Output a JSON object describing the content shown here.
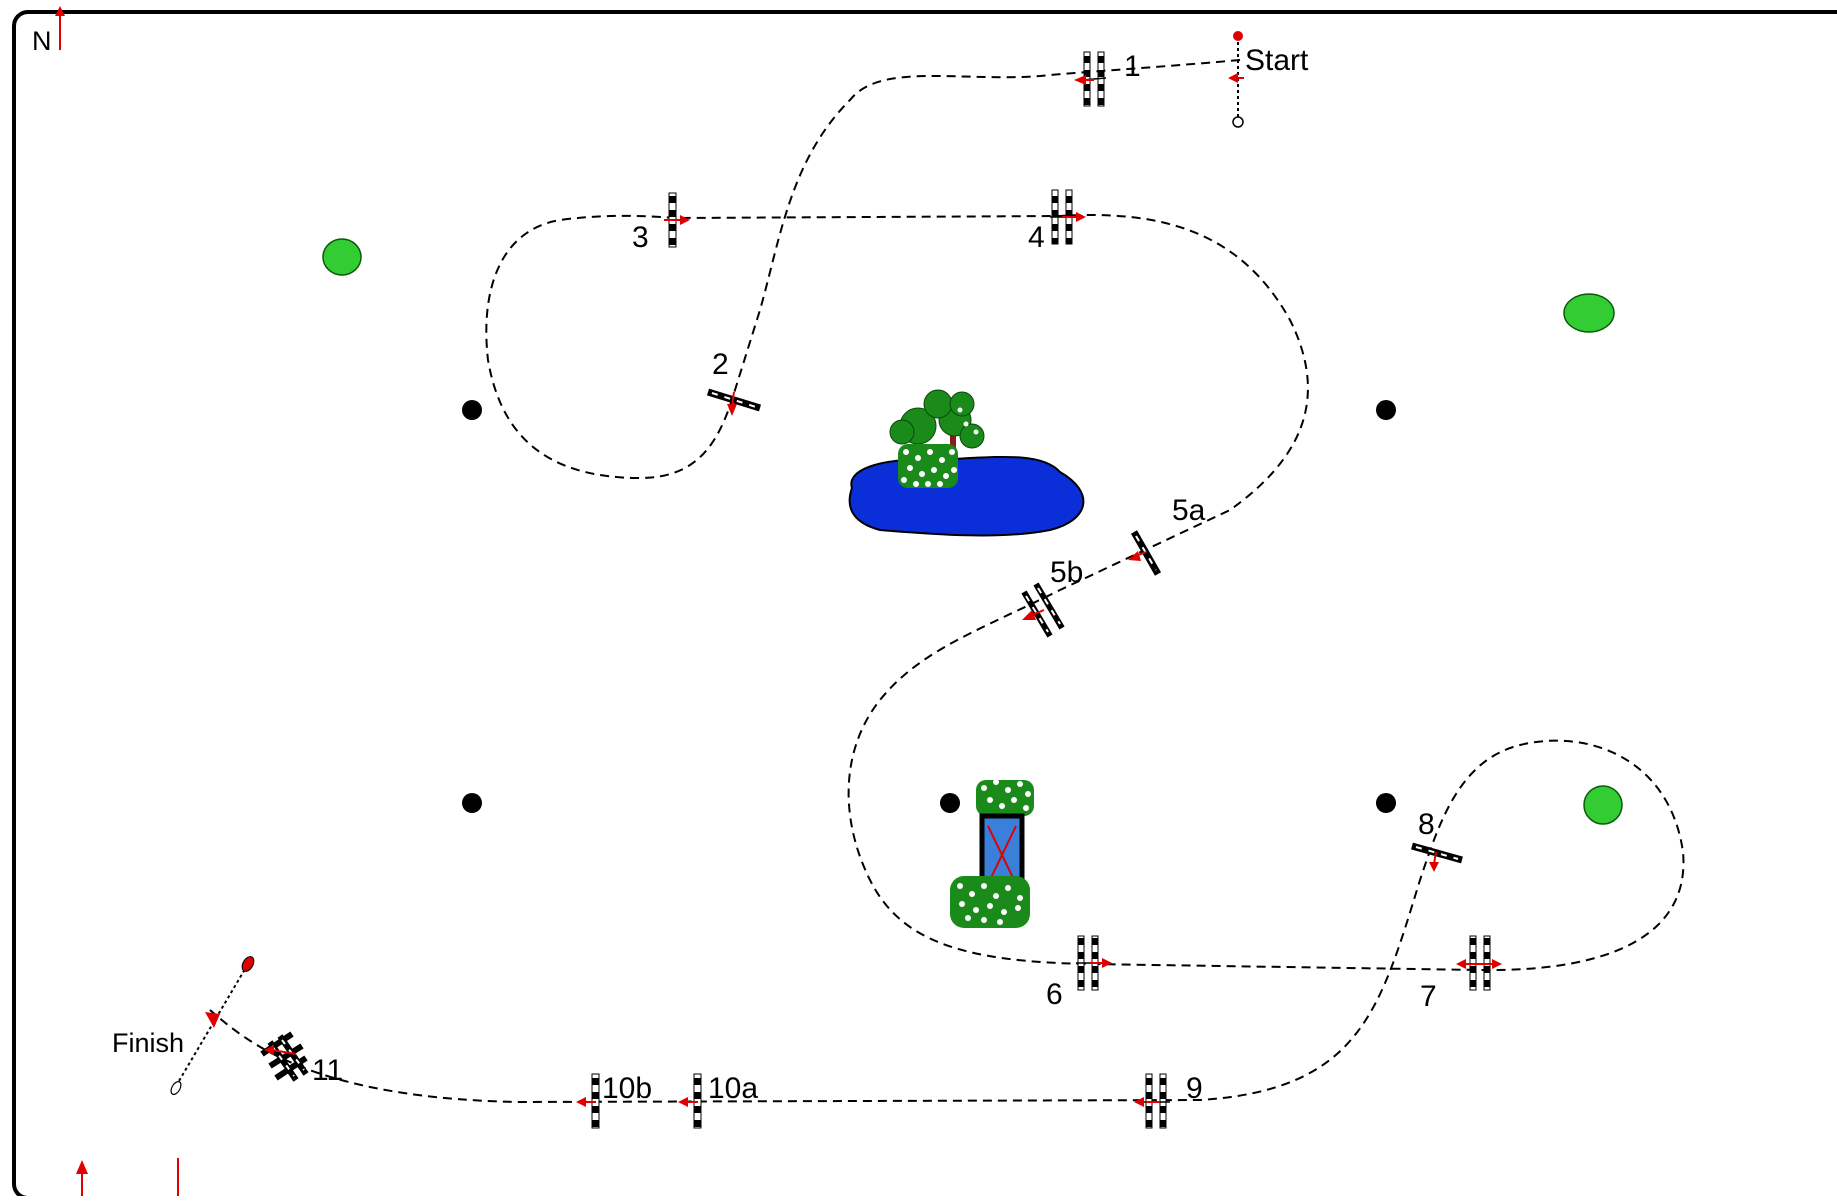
{
  "compass": {
    "north_label": "N"
  },
  "start": {
    "label": "Start"
  },
  "finish": {
    "label": "Finish"
  },
  "obstacles": [
    {
      "id": "1",
      "label": "1",
      "kind": "oxer"
    },
    {
      "id": "2",
      "label": "2",
      "kind": "vertical"
    },
    {
      "id": "3",
      "label": "3",
      "kind": "vertical"
    },
    {
      "id": "4",
      "label": "4",
      "kind": "oxer"
    },
    {
      "id": "5a",
      "label": "5a",
      "kind": "vertical"
    },
    {
      "id": "5b",
      "label": "5b",
      "kind": "oxer"
    },
    {
      "id": "6",
      "label": "6",
      "kind": "oxer"
    },
    {
      "id": "7",
      "label": "7",
      "kind": "oxer"
    },
    {
      "id": "8",
      "label": "8",
      "kind": "vertical"
    },
    {
      "id": "9",
      "label": "9",
      "kind": "oxer"
    },
    {
      "id": "10a",
      "label": "10a",
      "kind": "vertical"
    },
    {
      "id": "10b",
      "label": "10b",
      "kind": "vertical"
    },
    {
      "id": "11",
      "label": "11",
      "kind": "triple-bar"
    }
  ],
  "features": {
    "pond": "pond",
    "trees": "tree-group",
    "water-jump": "water-jump",
    "markers": [
      "green-marker",
      "green-marker",
      "green-marker"
    ],
    "dots": 6
  },
  "colors": {
    "path": "#000000",
    "arrow": "#e00000",
    "pond": "#0a2fd9",
    "marker": "#33cc33",
    "tree_leaf": "#1a8a1a",
    "tree_trunk": "#8b1a1a",
    "water_jump": "#3a7fd9"
  }
}
